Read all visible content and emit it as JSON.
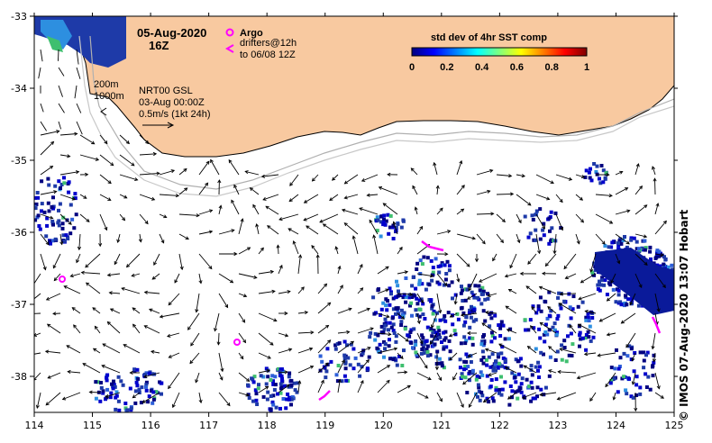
{
  "title": {
    "date": "05-Aug-2020",
    "hour": "16Z"
  },
  "legend": {
    "argo_label": "Argo",
    "drifters_line1": "drifters@12h",
    "drifters_line2": "to 06/08 12Z",
    "argo_color": "#ff00ff",
    "drifter_color": "#ff00ff"
  },
  "contours": {
    "label_200": "200m",
    "label_1000": "1000m"
  },
  "current_info": {
    "product": "NRT00 GSL",
    "date": "03-Aug 00:00Z",
    "scale": "0.5m/s (1kt 24h)"
  },
  "colorbar": {
    "title": "std dev of 4hr SST comp",
    "ticks": [
      "0",
      "0.2",
      "0.4",
      "0.6",
      "0.8",
      "1"
    ],
    "colors": [
      "#00007f",
      "#0000ff",
      "#007fff",
      "#00ffff",
      "#7fff7f",
      "#ffff00",
      "#ff7f00",
      "#ff0000",
      "#7f0000"
    ]
  },
  "axes": {
    "x_ticks": [
      "114",
      "115",
      "116",
      "117",
      "118",
      "119",
      "120",
      "121",
      "122",
      "123",
      "124",
      "125"
    ],
    "y_ticks": [
      "-33",
      "-34",
      "-35",
      "-36",
      "-37",
      "-38"
    ],
    "x_range": [
      114,
      125
    ],
    "y_range": [
      -38.5,
      -33
    ]
  },
  "land_color": "#f8c9a0",
  "credit": "© IMOS 07-Aug-2020 13:07 Hobart"
}
